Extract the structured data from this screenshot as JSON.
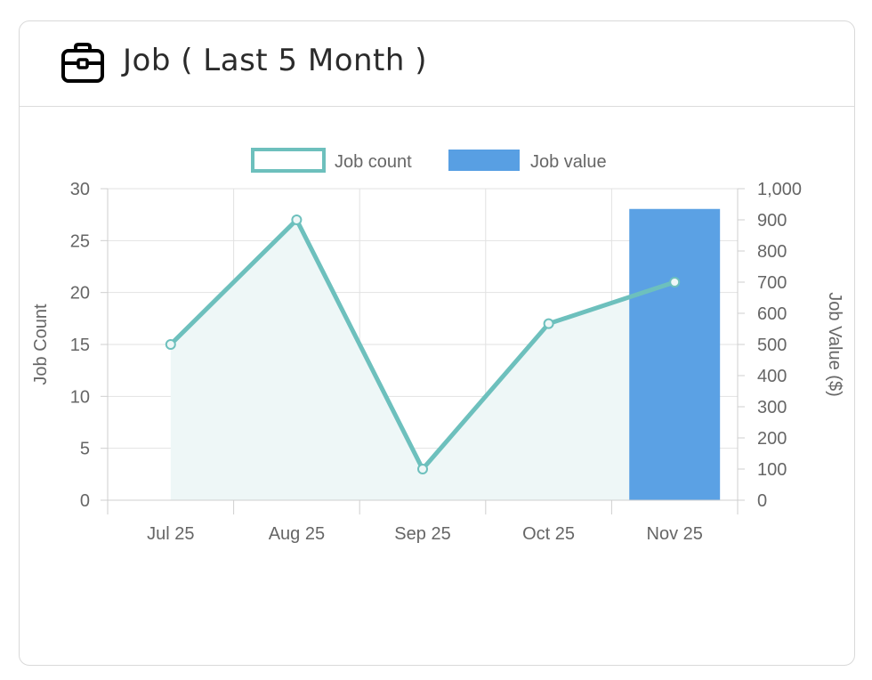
{
  "header": {
    "title": "Job ( Last 5 Month )",
    "icon": "briefcase-icon"
  },
  "chart_data": {
    "type": "bar",
    "categories": [
      "Jul 25",
      "Aug 25",
      "Sep 25",
      "Oct 25",
      "Nov 25"
    ],
    "series": [
      {
        "name": "Job count",
        "type": "line",
        "axis": "left",
        "values": [
          15,
          27,
          3,
          17,
          21
        ],
        "color": "#6dc0bd",
        "fill": "#eef7f7"
      },
      {
        "name": "Job value",
        "type": "bar",
        "axis": "right",
        "values": [
          0,
          0,
          0,
          0,
          935
        ],
        "color": "#589fe3"
      }
    ],
    "y_left": {
      "label": "Job Count",
      "min": 0,
      "max": 30,
      "ticks": [
        "0",
        "5",
        "10",
        "15",
        "20",
        "25",
        "30"
      ]
    },
    "y_right": {
      "label": "Job Value ($)",
      "min": 0,
      "max": 1000,
      "ticks": [
        "0",
        "100",
        "200",
        "300",
        "400",
        "500",
        "600",
        "700",
        "800",
        "900",
        "1,000"
      ]
    },
    "legend": {
      "placement": "top-center"
    },
    "grid": true
  }
}
